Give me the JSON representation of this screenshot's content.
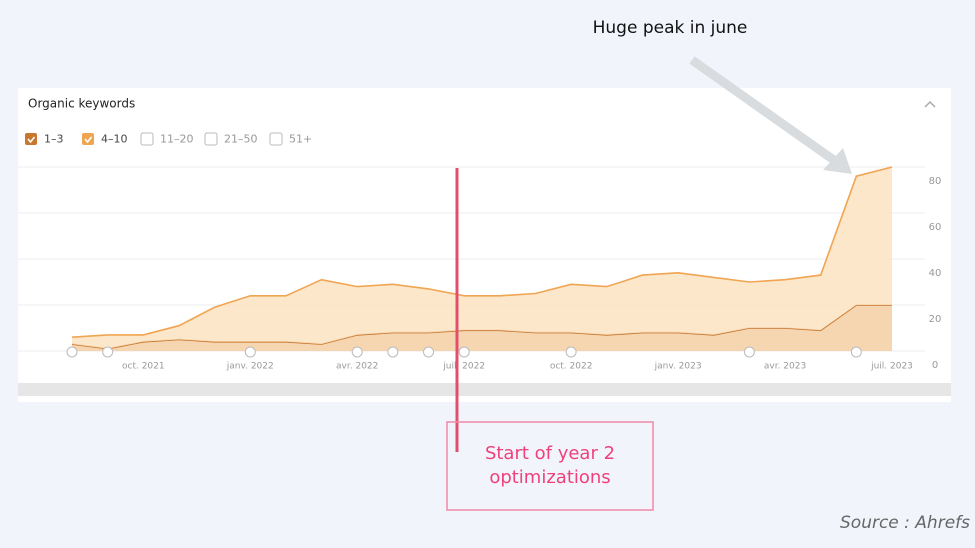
{
  "chart_data": {
    "type": "stacked-area",
    "title": "Organic keywords",
    "categories": [
      null,
      null,
      "oct. 2021",
      null,
      null,
      "janv. 2022",
      null,
      null,
      "avr. 2022",
      null,
      null,
      "juil. 2022",
      null,
      null,
      "oct. 2022",
      null,
      null,
      "janv. 2023",
      null,
      null,
      "avr. 2023",
      null,
      null,
      "juil. 2023"
    ],
    "series": [
      {
        "name": "1–3",
        "color": "#c8772e",
        "fill": "#f5cfa3",
        "values": [
          3,
          1,
          4,
          5,
          4,
          4,
          4,
          3,
          7,
          8,
          8,
          9,
          9,
          8,
          8,
          7,
          8,
          8,
          7,
          10,
          10,
          9,
          20,
          20
        ]
      },
      {
        "name": "4–10",
        "color": "#f0a552",
        "fill": "#fde3c2",
        "values": [
          3,
          6,
          3,
          6,
          15,
          20,
          20,
          28,
          21,
          21,
          19,
          15,
          15,
          17,
          21,
          21,
          25,
          26,
          25,
          20,
          21,
          24,
          56,
          60
        ]
      }
    ],
    "unchecked_filters": [
      "11–20",
      "21–50",
      "51+"
    ],
    "ylim": [
      0,
      80
    ],
    "yticks": [
      0,
      20,
      40,
      60,
      80
    ],
    "grid": true,
    "annotations": {
      "peak": "Huge peak in june",
      "start": [
        "Start of year 2",
        "optimizations"
      ],
      "source": "Source : Ahrefs"
    }
  }
}
